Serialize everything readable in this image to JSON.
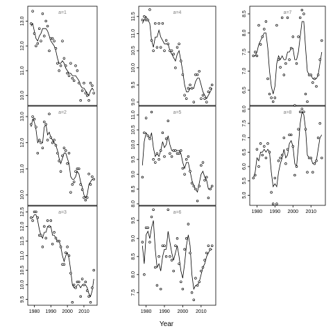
{
  "style": {
    "frame_color": "#000000",
    "point_color": "#000000",
    "line_color": "#000000",
    "label_color": "#7f7f7f"
  },
  "xlabel": "Year",
  "chart_data": [
    {
      "type": "scatter",
      "label": "a=1",
      "x": [
        1978,
        1979,
        1980,
        1981,
        1982,
        1983,
        1984,
        1985,
        1986,
        1987,
        1988,
        1989,
        1990,
        1991,
        1992,
        1993,
        1994,
        1995,
        1996,
        1997,
        1998,
        1999,
        2000,
        2001,
        2002,
        2003,
        2004,
        2005,
        2006,
        2007,
        2008,
        2009,
        2010,
        2011,
        2012,
        2013,
        2014,
        2015,
        2016
      ],
      "y": [
        12.9,
        13.4,
        12.5,
        12.0,
        12.1,
        12.7,
        12.2,
        13.3,
        12.4,
        13.0,
        12.8,
        11.8,
        12.3,
        12.3,
        12.2,
        11.9,
        11.3,
        11.0,
        11.2,
        12.2,
        11.5,
        11.2,
        10.9,
        10.8,
        11.3,
        10.7,
        10.6,
        11.2,
        11.0,
        10.5,
        9.8,
        10.2,
        10.5,
        10.1,
        10.0,
        9.8,
        10.5,
        10.4,
        10.1
      ],
      "fit": [
        12.8,
        12.9,
        12.6,
        12.3,
        12.2,
        12.4,
        12.5,
        12.7,
        12.7,
        12.7,
        12.6,
        12.4,
        12.2,
        12.1,
        12.0,
        11.8,
        11.5,
        11.3,
        11.3,
        11.4,
        11.3,
        11.1,
        11.0,
        10.9,
        10.9,
        10.8,
        10.8,
        10.8,
        10.7,
        10.6,
        10.4,
        10.3,
        10.3,
        10.2,
        10.1,
        10.0,
        10.2,
        10.3,
        10.2
      ],
      "yticks": [
        10.0,
        11.0,
        12.0,
        13.0
      ],
      "yticklabels": [
        "10.0",
        "11.0",
        "12.0",
        "13.0"
      ],
      "ylim": [
        9.6,
        13.6
      ]
    },
    {
      "type": "scatter",
      "label": "a=4",
      "x": [
        1978,
        1979,
        1980,
        1981,
        1982,
        1983,
        1984,
        1985,
        1986,
        1987,
        1988,
        1989,
        1990,
        1991,
        1992,
        1993,
        1994,
        1995,
        1996,
        1997,
        1998,
        1999,
        2000,
        2001,
        2002,
        2003,
        2004,
        2005,
        2006,
        2007,
        2008,
        2009,
        2010,
        2011,
        2012,
        2013,
        2014,
        2015,
        2016
      ],
      "y": [
        11.4,
        11.5,
        11.4,
        11.4,
        11.7,
        10.8,
        10.5,
        11.3,
        10.6,
        11.3,
        10.6,
        11.3,
        10.5,
        10.8,
        10.7,
        10.5,
        10.5,
        10.4,
        10.0,
        10.6,
        10.7,
        10.2,
        9.8,
        9.2,
        9.1,
        9.4,
        9.5,
        9.4,
        9.0,
        9.8,
        9.8,
        9.9,
        9.1,
        9.2,
        9.1,
        9.0,
        9.3,
        9.4,
        9.5
      ],
      "fit": [
        11.3,
        11.4,
        11.5,
        11.4,
        11.3,
        10.8,
        10.6,
        10.9,
        10.9,
        11.1,
        10.9,
        10.8,
        10.7,
        10.7,
        10.7,
        10.5,
        10.4,
        10.3,
        10.2,
        10.4,
        10.5,
        10.2,
        9.9,
        9.5,
        9.3,
        9.3,
        9.4,
        9.4,
        9.4,
        9.6,
        9.7,
        9.7,
        9.5,
        9.3,
        9.2,
        9.1,
        9.2,
        9.3,
        9.4
      ],
      "yticks": [
        9.0,
        9.5,
        10.0,
        10.5,
        11.0,
        11.5
      ],
      "yticklabels": [
        "9.0",
        "9.5",
        "10.0",
        "10.5",
        "11.0",
        "11.5"
      ],
      "ylim": [
        8.9,
        11.8
      ]
    },
    {
      "type": "scatter",
      "label": "a=7",
      "x": [
        1978,
        1979,
        1980,
        1981,
        1982,
        1983,
        1984,
        1985,
        1986,
        1987,
        1988,
        1989,
        1990,
        1991,
        1992,
        1993,
        1994,
        1995,
        1996,
        1997,
        1998,
        1999,
        2000,
        2001,
        2002,
        2003,
        2004,
        2005,
        2006,
        2007,
        2008,
        2009,
        2010,
        2011,
        2012,
        2013,
        2014,
        2015,
        2016
      ],
      "y": [
        7.4,
        7.5,
        7.4,
        8.2,
        7.7,
        7.9,
        8.1,
        8.3,
        6.8,
        6.4,
        6.3,
        6.2,
        6.3,
        8.2,
        7.3,
        7.1,
        8.4,
        6.9,
        7.2,
        8.4,
        7.3,
        7.6,
        7.9,
        6.1,
        7.2,
        7.9,
        8.4,
        8.6,
        8.5,
        6.4,
        6.2,
        6.9,
        6.9,
        6.7,
        6.8,
        6.6,
        6.9,
        7.3,
        7.8
      ],
      "fit": [
        7.4,
        7.4,
        7.5,
        7.7,
        7.8,
        7.9,
        8.0,
        8.0,
        7.6,
        7.0,
        6.6,
        6.4,
        6.6,
        7.2,
        7.4,
        7.3,
        7.4,
        7.3,
        7.3,
        7.5,
        7.5,
        7.6,
        7.6,
        7.3,
        7.3,
        7.5,
        7.9,
        8.3,
        8.3,
        7.6,
        7.0,
        6.9,
        6.9,
        6.8,
        6.8,
        6.8,
        6.9,
        7.2,
        7.5
      ],
      "yticks": [
        6.5,
        7.0,
        7.5,
        8.0,
        8.5
      ],
      "yticklabels": [
        "6.5",
        "7.0",
        "7.5",
        "8.0",
        "8.5"
      ],
      "ylim": [
        6.1,
        8.7
      ]
    },
    {
      "type": "scatter",
      "label": "a=2",
      "x": [
        1978,
        1979,
        1980,
        1981,
        1982,
        1983,
        1984,
        1985,
        1986,
        1987,
        1988,
        1989,
        1990,
        1991,
        1992,
        1993,
        1994,
        1995,
        1996,
        1997,
        1998,
        1999,
        2000,
        2001,
        2002,
        2003,
        2004,
        2005,
        2006,
        2007,
        2008,
        2009,
        2010,
        2011,
        2012,
        2013,
        2014,
        2015,
        2016
      ],
      "y": [
        12.7,
        13.0,
        12.9,
        12.6,
        11.6,
        12.1,
        12.0,
        11.8,
        12.8,
        12.7,
        12.1,
        13.1,
        12.2,
        12.0,
        12.1,
        11.9,
        11.6,
        11.3,
        10.9,
        11.5,
        11.8,
        11.7,
        11.2,
        11.6,
        10.1,
        10.4,
        10.5,
        10.9,
        11.0,
        11.0,
        10.4,
        10.2,
        9.9,
        9.8,
        9.9,
        10.8,
        10.4,
        10.7,
        10.6
      ],
      "fit": [
        12.6,
        12.9,
        12.8,
        12.5,
        12.0,
        12.1,
        12.0,
        12.0,
        12.6,
        12.7,
        12.3,
        12.4,
        12.2,
        12.1,
        12.0,
        11.9,
        11.7,
        11.4,
        11.2,
        11.4,
        11.6,
        11.6,
        11.4,
        11.2,
        10.7,
        10.6,
        10.6,
        10.7,
        10.9,
        10.8,
        10.5,
        10.3,
        10.0,
        9.9,
        10.0,
        10.4,
        10.5,
        10.6,
        10.6
      ],
      "yticks": [
        10.0,
        11.0,
        12.0,
        13.0
      ],
      "yticklabels": [
        "10.0",
        "11.0",
        "12.0",
        "13.0"
      ],
      "ylim": [
        9.6,
        13.4
      ]
    },
    {
      "type": "scatter",
      "label": "a=5",
      "x": [
        1978,
        1979,
        1980,
        1981,
        1982,
        1983,
        1984,
        1985,
        1986,
        1987,
        1988,
        1989,
        1990,
        1991,
        1992,
        1993,
        1994,
        1995,
        1996,
        1997,
        1998,
        1999,
        2000,
        2001,
        2002,
        2003,
        2004,
        2005,
        2006,
        2007,
        2008,
        2009,
        2010,
        2011,
        2012,
        2013,
        2014,
        2015,
        2016
      ],
      "y": [
        8.9,
        10.4,
        10.9,
        10.3,
        10.2,
        11.1,
        9.5,
        9.4,
        9.7,
        9.5,
        9.8,
        10.4,
        9.6,
        10.2,
        10.8,
        9.7,
        9.6,
        9.8,
        9.8,
        9.7,
        9.7,
        9.8,
        9.2,
        9.0,
        9.5,
        9.6,
        9.1,
        8.7,
        8.6,
        8.5,
        8.1,
        8.6,
        9.3,
        9.4,
        8.8,
        8.9,
        8.2,
        8.5,
        8.6
      ],
      "fit": [
        9.3,
        10.1,
        10.4,
        10.3,
        10.2,
        10.4,
        9.9,
        9.6,
        9.7,
        9.6,
        9.8,
        10.1,
        9.9,
        10.0,
        10.3,
        10.0,
        9.8,
        9.8,
        9.8,
        9.8,
        9.8,
        9.7,
        9.4,
        9.2,
        9.4,
        9.4,
        9.1,
        8.8,
        8.6,
        8.5,
        8.4,
        8.7,
        9.0,
        9.1,
        8.9,
        8.8,
        8.5,
        8.5,
        8.6
      ],
      "yticks": [
        8.0,
        8.5,
        9.0,
        9.5,
        10.0,
        10.5,
        11.0
      ],
      "yticklabels": [
        "8.0",
        "8.5",
        "9.0",
        "9.5",
        "10.0",
        "10.5",
        "11.0"
      ],
      "ylim": [
        7.95,
        11.3
      ]
    },
    {
      "type": "scatter",
      "label": "a=8",
      "x": [
        1978,
        1979,
        1980,
        1981,
        1982,
        1983,
        1984,
        1985,
        1986,
        1987,
        1988,
        1989,
        1990,
        1991,
        1992,
        1993,
        1994,
        1995,
        1996,
        1997,
        1998,
        1999,
        2000,
        2001,
        2002,
        2003,
        2004,
        2005,
        2006,
        2007,
        2008,
        2009,
        2010,
        2011,
        2012,
        2013,
        2014,
        2015,
        2016
      ],
      "y": [
        5.6,
        5.7,
        6.6,
        6.0,
        6.8,
        6.4,
        6.7,
        6.3,
        6.8,
        6.5,
        5.1,
        4.7,
        5.6,
        4.7,
        6.2,
        6.3,
        6.4,
        7.0,
        6.1,
        6.6,
        7.1,
        7.1,
        6.7,
        5.7,
        6.0,
        7.3,
        7.9,
        8.0,
        7.9,
        7.3,
        5.8,
        6.3,
        6.3,
        5.8,
        6.1,
        6.2,
        7.0,
        7.5,
        6.3
      ],
      "fit": [
        5.6,
        5.8,
        6.3,
        6.2,
        6.5,
        6.5,
        6.6,
        6.5,
        6.6,
        6.5,
        5.8,
        5.3,
        5.4,
        5.3,
        5.8,
        6.1,
        6.3,
        6.6,
        6.3,
        6.4,
        6.8,
        6.9,
        6.7,
        6.1,
        6.0,
        6.7,
        7.5,
        7.9,
        7.8,
        7.3,
        6.4,
        6.3,
        6.3,
        6.1,
        6.1,
        6.2,
        6.6,
        7.0,
        7.1
      ],
      "yticks": [
        5.0,
        5.5,
        6.0,
        6.5,
        7.0,
        7.5,
        8.0
      ],
      "yticklabels": [
        "5.0",
        "5.5",
        "6.0",
        "6.5",
        "7.0",
        "7.5",
        "8.0"
      ],
      "ylim": [
        4.65,
        8.1
      ]
    },
    {
      "type": "scatter",
      "label": "a=3",
      "x": [
        1978,
        1979,
        1980,
        1981,
        1982,
        1983,
        1984,
        1985,
        1986,
        1987,
        1988,
        1989,
        1990,
        1991,
        1992,
        1993,
        1994,
        1995,
        1996,
        1997,
        1998,
        1999,
        2000,
        2001,
        2002,
        2003,
        2004,
        2005,
        2006,
        2007,
        2008,
        2009,
        2010,
        2011,
        2012,
        2013,
        2014,
        2015,
        2016
      ],
      "y": [
        12.3,
        12.2,
        12.5,
        12.5,
        12.3,
        11.7,
        11.7,
        11.3,
        12.0,
        11.6,
        12.2,
        12.0,
        12.2,
        11.4,
        11.8,
        11.6,
        11.5,
        11.5,
        11.3,
        10.7,
        10.7,
        11.1,
        11.3,
        11.0,
        10.4,
        9.4,
        10.0,
        9.9,
        10.1,
        10.1,
        9.6,
        10.2,
        10.0,
        10.1,
        9.8,
        9.6,
        9.4,
        9.9,
        10.5
      ],
      "fit": [
        12.3,
        12.3,
        12.4,
        12.4,
        12.2,
        11.9,
        11.7,
        11.6,
        11.8,
        11.8,
        12.0,
        12.0,
        12.0,
        11.7,
        11.7,
        11.6,
        11.5,
        11.5,
        11.3,
        11.0,
        10.8,
        11.0,
        11.1,
        10.9,
        10.5,
        10.0,
        9.9,
        9.9,
        10.0,
        10.0,
        9.9,
        10.0,
        10.0,
        10.0,
        9.9,
        9.7,
        9.6,
        9.8,
        10.2
      ],
      "yticks": [
        9.5,
        10.0,
        10.5,
        11.0,
        11.5,
        12.0,
        12.5
      ],
      "yticklabels": [
        "9.5",
        "10.0",
        "10.5",
        "11.0",
        "11.5",
        "12.0",
        "12.5"
      ],
      "ylim": [
        9.3,
        12.7
      ]
    },
    {
      "type": "scatter",
      "label": "a=6",
      "x": [
        1978,
        1979,
        1980,
        1981,
        1982,
        1983,
        1984,
        1985,
        1986,
        1987,
        1988,
        1989,
        1990,
        1991,
        1992,
        1993,
        1994,
        1995,
        1996,
        1997,
        1998,
        1999,
        2000,
        2001,
        2002,
        2003,
        2004,
        2005,
        2006,
        2007,
        2008,
        2009,
        2010,
        2011,
        2012,
        2013,
        2014,
        2015,
        2016
      ],
      "y": [
        8.9,
        8.0,
        9.3,
        9.3,
        8.9,
        9.6,
        9.8,
        8.2,
        7.7,
        8.5,
        7.6,
        8.8,
        8.8,
        8.5,
        9.8,
        8.5,
        8.4,
        8.1,
        8.8,
        9.0,
        8.3,
        7.8,
        7.6,
        8.7,
        9.0,
        9.4,
        8.6,
        7.5,
        7.3,
        7.9,
        7.7,
        7.8,
        8.1,
        8.2,
        8.4,
        8.6,
        8.8,
        8.7,
        8.8
      ],
      "fit": [
        8.8,
        8.3,
        9.1,
        9.2,
        9.0,
        9.3,
        9.5,
        8.7,
        8.2,
        8.3,
        8.1,
        8.5,
        8.7,
        8.7,
        9.2,
        8.9,
        8.6,
        8.4,
        8.6,
        8.8,
        8.5,
        8.1,
        7.9,
        8.3,
        8.8,
        9.1,
        8.8,
        8.0,
        7.6,
        7.7,
        7.7,
        7.8,
        8.0,
        8.2,
        8.3,
        8.5,
        8.6,
        8.7,
        8.7
      ],
      "yticks": [
        7.5,
        8.0,
        8.5,
        9.0,
        9.5
      ],
      "yticklabels": [
        "7.5",
        "8.0",
        "8.5",
        "9.0",
        "9.5"
      ],
      "ylim": [
        7.15,
        9.9
      ]
    }
  ],
  "xaxis": {
    "ticks": [
      1980,
      1990,
      2000,
      2010
    ],
    "ticklabels": [
      "1980",
      "1990",
      "2000",
      "2010"
    ],
    "xlim": [
      1976,
      2018
    ]
  }
}
